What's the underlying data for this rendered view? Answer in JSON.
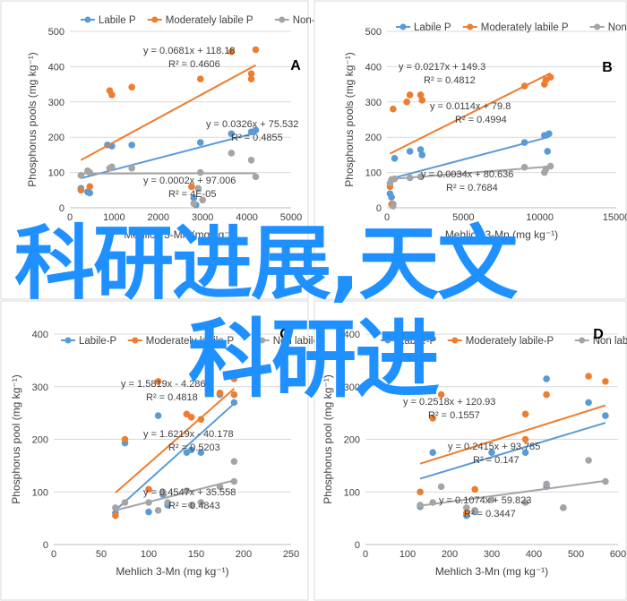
{
  "watermark": {
    "line1": "科研进展,天文",
    "line2": "科研进"
  },
  "colors": {
    "labile": "#5b9bd5",
    "moderately": "#ed7d31",
    "nonlabile": "#a5a5a5",
    "axis": "#404040",
    "grid": "#d9d9d9"
  },
  "chart_data": [
    {
      "type": "scatter",
      "panel": "A",
      "xlabel": "Mehlich 3-Mn (mg kg⁻¹)",
      "ylabel": "Phosphorus pools (mg kg⁻¹)",
      "xlim": [
        0,
        5000
      ],
      "ylim": [
        0,
        500
      ],
      "xticks": [
        0,
        1000,
        2000,
        3000,
        4000,
        5000
      ],
      "yticks": [
        0,
        100,
        200,
        300,
        400,
        500
      ],
      "legend": [
        "Labile P",
        "Moderately labile P",
        "Non-labile P"
      ],
      "series": [
        {
          "name": "Labile P",
          "color": "labile",
          "points": [
            [
              250,
              55
            ],
            [
              400,
              45
            ],
            [
              450,
              42
            ],
            [
              850,
              178
            ],
            [
              950,
              175
            ],
            [
              1400,
              178
            ],
            [
              2950,
              185
            ],
            [
              3650,
              210
            ],
            [
              4100,
              215
            ],
            [
              4200,
              220
            ],
            [
              2800,
              28
            ],
            [
              2850,
              8
            ]
          ],
          "trend": {
            "slope": 0.0326,
            "intercept": 75.532
          },
          "eq": "y = 0.0326x + 75.532",
          "r2": "R² = 0.4855"
        },
        {
          "name": "Moderately labile P",
          "color": "moderately",
          "points": [
            [
              250,
              50
            ],
            [
              450,
              60
            ],
            [
              900,
              332
            ],
            [
              950,
              320
            ],
            [
              1400,
              342
            ],
            [
              2950,
              365
            ],
            [
              3650,
              442
            ],
            [
              4100,
              380
            ],
            [
              4100,
              365
            ],
            [
              4200,
              448
            ],
            [
              2750,
              60
            ]
          ],
          "trend": {
            "slope": 0.0681,
            "intercept": 118.18
          },
          "eq": "y = 0.0681x + 118.18",
          "r2": "R² = 0.4606"
        },
        {
          "name": "Non-labile P",
          "color": "nonlabile",
          "points": [
            [
              250,
              92
            ],
            [
              400,
              105
            ],
            [
              450,
              100
            ],
            [
              900,
              112
            ],
            [
              950,
              116
            ],
            [
              1400,
              112
            ],
            [
              2950,
              100
            ],
            [
              3650,
              155
            ],
            [
              4100,
              135
            ],
            [
              4200,
              88
            ],
            [
              2800,
              12
            ],
            [
              2900,
              55
            ],
            [
              3000,
              22
            ]
          ],
          "trend": {
            "slope": 0.0002,
            "intercept": 97.006
          },
          "eq": "y = 0.0002x + 97.006",
          "r2": "R² = 4E-05"
        }
      ]
    },
    {
      "type": "scatter",
      "panel": "B",
      "xlabel": "Mehlich 3-Mn (mg kg⁻¹)",
      "ylabel": "Phosphorus pools (mg kg⁻¹)",
      "xlim": [
        0,
        15000
      ],
      "ylim": [
        0,
        500
      ],
      "xticks": [
        0,
        5000,
        10000,
        15000
      ],
      "yticks": [
        0,
        100,
        200,
        300,
        400,
        500
      ],
      "legend": [
        "Labile P",
        "Moderately labile P",
        "Non-labile P"
      ],
      "series": [
        {
          "name": "Labile P",
          "color": "labile",
          "points": [
            [
              200,
              40
            ],
            [
              300,
              30
            ],
            [
              500,
              140
            ],
            [
              1500,
              160
            ],
            [
              2200,
              165
            ],
            [
              2300,
              150
            ],
            [
              9000,
              185
            ],
            [
              10300,
              205
            ],
            [
              10500,
              160
            ],
            [
              10600,
              210
            ],
            [
              400,
              10
            ]
          ],
          "trend": {
            "slope": 0.0114,
            "intercept": 79.8
          },
          "eq": "y = 0.0114x + 79.8",
          "r2": "R² = 0.4994"
        },
        {
          "name": "Moderately labile P",
          "color": "moderately",
          "points": [
            [
              200,
              60
            ],
            [
              400,
              280
            ],
            [
              1300,
              300
            ],
            [
              1500,
              320
            ],
            [
              2200,
              320
            ],
            [
              2300,
              305
            ],
            [
              9000,
              345
            ],
            [
              10300,
              350
            ],
            [
              10400,
              362
            ],
            [
              10700,
              370
            ],
            [
              300,
              10
            ]
          ],
          "trend": {
            "slope": 0.0217,
            "intercept": 149.3
          },
          "eq": "y = 0.0217x + 149.3",
          "r2": "R² = 0.4812"
        },
        {
          "name": "Non-labile P",
          "color": "nonlabile",
          "points": [
            [
              200,
              70
            ],
            [
              300,
              80
            ],
            [
              500,
              82
            ],
            [
              1500,
              85
            ],
            [
              2200,
              88
            ],
            [
              9000,
              115
            ],
            [
              10300,
              100
            ],
            [
              10400,
              110
            ],
            [
              10700,
              118
            ],
            [
              400,
              5
            ]
          ],
          "trend": {
            "slope": 0.0034,
            "intercept": 80.636
          },
          "eq": "y = 0.0034x + 80.636",
          "r2": "R² = 0.7684"
        }
      ]
    },
    {
      "type": "scatter",
      "panel": "C",
      "xlabel": "Mehlich 3-Mn (mg kg⁻¹)",
      "ylabel": "Phosphorus pool (mg kg⁻¹)",
      "xlim": [
        0,
        250
      ],
      "ylim": [
        0,
        400
      ],
      "xticks": [
        0,
        50,
        100,
        150,
        200,
        250
      ],
      "yticks": [
        0,
        100,
        200,
        300,
        400
      ],
      "legend": [
        "Labile-P",
        "Moderately labile-P",
        "Non labile-P"
      ],
      "series": [
        {
          "name": "Labile-P",
          "color": "labile",
          "points": [
            [
              65,
              60
            ],
            [
              75,
              193
            ],
            [
              100,
              62
            ],
            [
              110,
              245
            ],
            [
              115,
              95
            ],
            [
              120,
              75
            ],
            [
              140,
              175
            ],
            [
              145,
              180
            ],
            [
              155,
              175
            ],
            [
              190,
              270
            ],
            [
              175,
              285
            ]
          ],
          "trend": {
            "slope": 1.6219,
            "intercept": -40.178
          },
          "eq": "y = 1.6219x - 40.178",
          "r2": "R² = 0.5203"
        },
        {
          "name": "Moderately labile-P",
          "color": "moderately",
          "points": [
            [
              65,
              55
            ],
            [
              75,
              200
            ],
            [
              100,
              105
            ],
            [
              110,
              310
            ],
            [
              140,
              248
            ],
            [
              145,
              242
            ],
            [
              155,
              238
            ],
            [
              175,
              288
            ],
            [
              190,
              285
            ],
            [
              190,
              315
            ]
          ],
          "trend": {
            "slope": 1.5819,
            "intercept": -4.2868
          },
          "eq": "y = 1.5819x - 4.2868",
          "r2": "R² = 0.4818"
        },
        {
          "name": "Non labile-P",
          "color": "nonlabile",
          "points": [
            [
              65,
              70
            ],
            [
              75,
              80
            ],
            [
              100,
              80
            ],
            [
              110,
              65
            ],
            [
              115,
              100
            ],
            [
              120,
              80
            ],
            [
              140,
              102
            ],
            [
              145,
              75
            ],
            [
              155,
              80
            ],
            [
              175,
              110
            ],
            [
              190,
              120
            ],
            [
              190,
              158
            ]
          ],
          "trend": {
            "slope": 0.4547,
            "intercept": 35.558
          },
          "eq": "y = 0.4547x + 35.558",
          "r2": "R² = 0.4843"
        }
      ]
    },
    {
      "type": "scatter",
      "panel": "D",
      "xlabel": "Mehlich 3-Mn (mg kg⁻¹)",
      "ylabel": "Phosphorus pool (mg kg⁻¹)",
      "xlim": [
        0,
        600
      ],
      "ylim": [
        0,
        400
      ],
      "xticks": [
        0,
        100,
        200,
        300,
        400,
        500,
        600
      ],
      "yticks": [
        0,
        100,
        200,
        300,
        400
      ],
      "legend": [
        "Labile-P",
        "Moderately labile-P",
        "Non labile-P"
      ],
      "series": [
        {
          "name": "Labile-P",
          "color": "labile",
          "points": [
            [
              130,
              72
            ],
            [
              160,
              175
            ],
            [
              240,
              55
            ],
            [
              260,
              62
            ],
            [
              300,
              175
            ],
            [
              380,
              175
            ],
            [
              430,
              315
            ],
            [
              530,
              270
            ],
            [
              570,
              245
            ],
            [
              430,
              110
            ]
          ],
          "trend": {
            "slope": 0.2415,
            "intercept": 93.785
          },
          "eq": "y = 0.2415x + 93.785",
          "r2": "R² = 0.147"
        },
        {
          "name": "Moderately labile-P",
          "color": "moderately",
          "points": [
            [
              130,
              100
            ],
            [
              160,
              240
            ],
            [
              180,
              285
            ],
            [
              240,
              60
            ],
            [
              260,
              105
            ],
            [
              380,
              248
            ],
            [
              380,
              200
            ],
            [
              430,
              285
            ],
            [
              530,
              320
            ],
            [
              570,
              310
            ],
            [
              470,
              70
            ]
          ],
          "trend": {
            "slope": 0.2518,
            "intercept": 120.93
          },
          "eq": "y = 0.2518x + 120.93",
          "r2": "R² = 0.1557"
        },
        {
          "name": "Non labile-P",
          "color": "nonlabile",
          "points": [
            [
              130,
              75
            ],
            [
              160,
              80
            ],
            [
              180,
              110
            ],
            [
              240,
              70
            ],
            [
              260,
              65
            ],
            [
              300,
              85
            ],
            [
              380,
              80
            ],
            [
              430,
              115
            ],
            [
              470,
              70
            ],
            [
              530,
              160
            ],
            [
              570,
              120
            ]
          ],
          "trend": {
            "slope": 0.1074,
            "intercept": 59.823
          },
          "eq": "y = 0.1074x + 59.823",
          "r2": "R² = 0.3447"
        }
      ]
    }
  ]
}
